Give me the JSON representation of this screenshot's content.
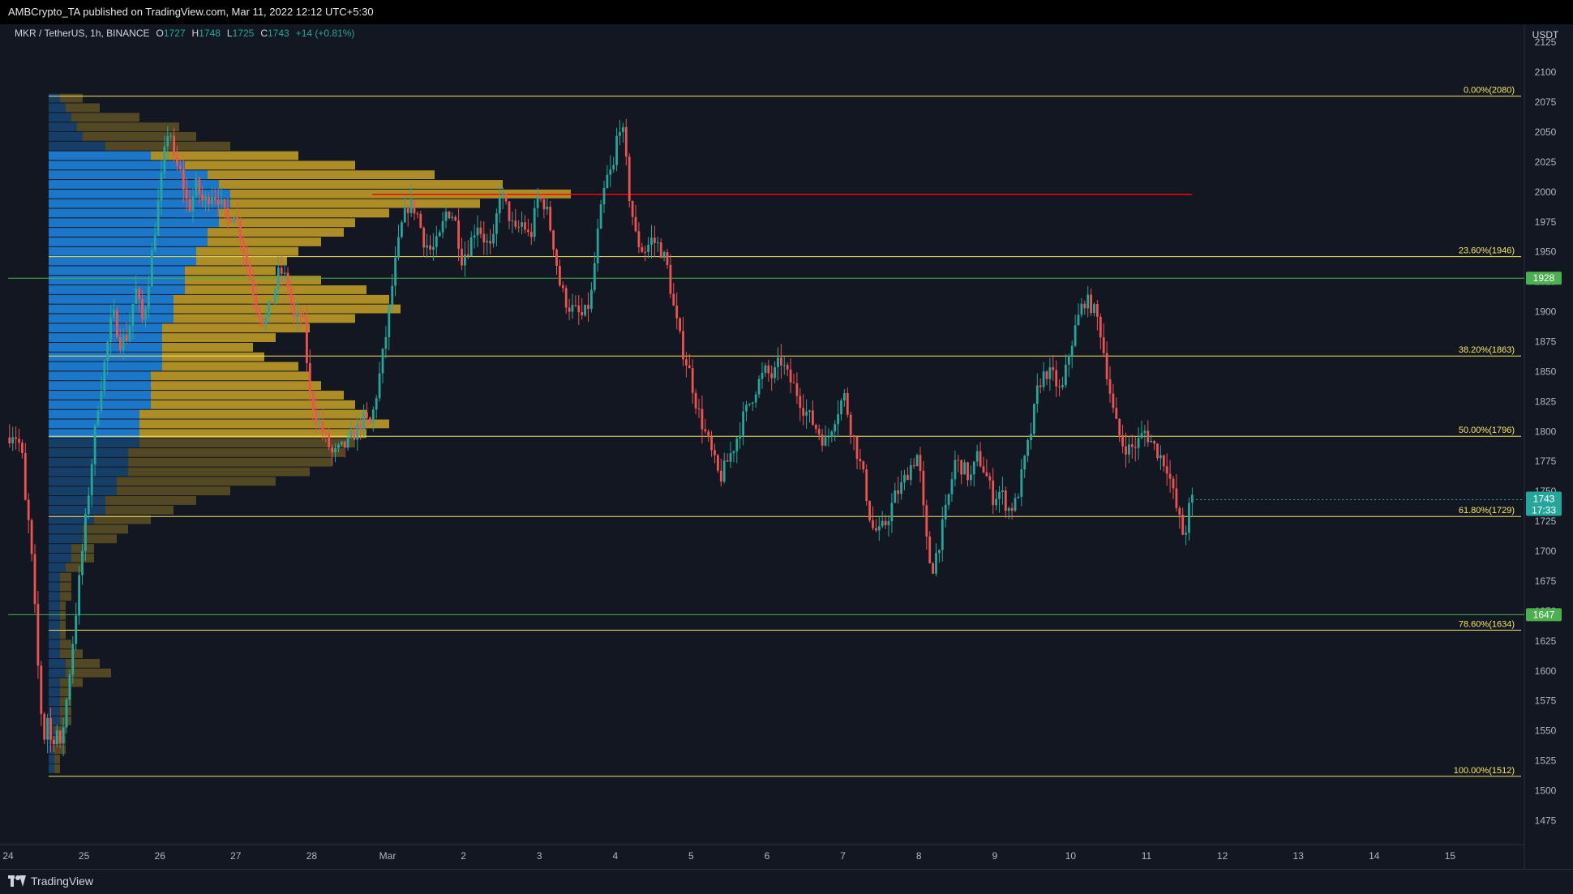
{
  "header": {
    "title": "AMBCrypto_TA published on TradingView.com, Mar 11, 2022 12:12 UTC+5:30"
  },
  "legend": {
    "symbol": "MKR / TetherUS, 1h, BINANCE",
    "o_label": "O",
    "o_value": "1727",
    "h_label": "H",
    "h_value": "1748",
    "l_label": "L",
    "l_value": "1725",
    "c_label": "C",
    "c_value": "1743",
    "change": "+14 (+0.81%)"
  },
  "footer": {
    "brand": "TradingView"
  },
  "chart_data": {
    "type": "candlestick",
    "title": "",
    "currency_label": "USDT",
    "y_range": [
      1455,
      2140
    ],
    "y_ticks": [
      1475,
      1500,
      1525,
      1550,
      1575,
      1600,
      1625,
      1650,
      1675,
      1700,
      1725,
      1750,
      1775,
      1800,
      1825,
      1850,
      1875,
      1900,
      1925,
      1950,
      1975,
      2000,
      2025,
      2050,
      2075,
      2100,
      2125
    ],
    "x_ticks": [
      {
        "label": "24",
        "day": 0
      },
      {
        "label": "25",
        "day": 1
      },
      {
        "label": "26",
        "day": 2
      },
      {
        "label": "27",
        "day": 3
      },
      {
        "label": "28",
        "day": 4
      },
      {
        "label": "Mar",
        "day": 5
      },
      {
        "label": "2",
        "day": 6
      },
      {
        "label": "3",
        "day": 7
      },
      {
        "label": "4",
        "day": 8
      },
      {
        "label": "5",
        "day": 9
      },
      {
        "label": "6",
        "day": 10
      },
      {
        "label": "7",
        "day": 11
      },
      {
        "label": "8",
        "day": 12
      },
      {
        "label": "9",
        "day": 13
      },
      {
        "label": "10",
        "day": 14
      },
      {
        "label": "11",
        "day": 15
      },
      {
        "label": "12",
        "day": 16
      },
      {
        "label": "13",
        "day": 17
      },
      {
        "label": "14",
        "day": 18
      },
      {
        "label": "15",
        "day": 19
      }
    ],
    "fib_levels": [
      {
        "label": "0.00%(2080)",
        "value": 2080
      },
      {
        "label": "23.60%(1946)",
        "value": 1946
      },
      {
        "label": "38.20%(1863)",
        "value": 1863
      },
      {
        "label": "50.00%(1796)",
        "value": 1796
      },
      {
        "label": "61.80%(1729)",
        "value": 1729
      },
      {
        "label": "78.60%(1634)",
        "value": 1634
      },
      {
        "label": "100.00%(1512)",
        "value": 1512
      }
    ],
    "horizontal_levels": [
      {
        "label": "1928",
        "value": 1928,
        "color": "#4caf50"
      },
      {
        "label": "1647",
        "value": 1647,
        "color": "#4caf50"
      }
    ],
    "red_line": {
      "value": 1998,
      "color": "#ff0000"
    },
    "last_price": {
      "label": "1743",
      "countdown": "17:33",
      "value": 1743
    },
    "colors": {
      "up": "#26a69a",
      "down": "#ef5350",
      "fib": "#f5e663",
      "vp_up": "#1e88e5",
      "vp_down": "#c9a227"
    },
    "close_path": [
      [
        0.0,
        1795
      ],
      [
        0.1,
        1800
      ],
      [
        0.2,
        1785
      ],
      [
        0.25,
        1740
      ],
      [
        0.3,
        1720
      ],
      [
        0.35,
        1680
      ],
      [
        0.4,
        1620
      ],
      [
        0.45,
        1570
      ],
      [
        0.5,
        1545
      ],
      [
        0.55,
        1565
      ],
      [
        0.6,
        1530
      ],
      [
        0.65,
        1560
      ],
      [
        0.7,
        1530
      ],
      [
        0.8,
        1580
      ],
      [
        0.9,
        1640
      ],
      [
        1.0,
        1700
      ],
      [
        1.1,
        1760
      ],
      [
        1.2,
        1820
      ],
      [
        1.3,
        1860
      ],
      [
        1.4,
        1900
      ],
      [
        1.5,
        1875
      ],
      [
        1.6,
        1880
      ],
      [
        1.7,
        1920
      ],
      [
        1.8,
        1890
      ],
      [
        1.9,
        1940
      ],
      [
        2.0,
        1990
      ],
      [
        2.1,
        2040
      ],
      [
        2.15,
        2060
      ],
      [
        2.2,
        2025
      ],
      [
        2.3,
        2015
      ],
      [
        2.4,
        1985
      ],
      [
        2.5,
        2005
      ],
      [
        2.6,
        1990
      ],
      [
        2.7,
        2000
      ],
      [
        2.8,
        1995
      ],
      [
        2.9,
        1975
      ],
      [
        3.0,
        1985
      ],
      [
        3.1,
        1960
      ],
      [
        3.2,
        1930
      ],
      [
        3.3,
        1905
      ],
      [
        3.4,
        1890
      ],
      [
        3.5,
        1910
      ],
      [
        3.6,
        1935
      ],
      [
        3.7,
        1925
      ],
      [
        3.8,
        1890
      ],
      [
        3.9,
        1900
      ],
      [
        4.0,
        1830
      ],
      [
        4.1,
        1810
      ],
      [
        4.2,
        1795
      ],
      [
        4.3,
        1780
      ],
      [
        4.4,
        1785
      ],
      [
        4.5,
        1790
      ],
      [
        4.6,
        1800
      ],
      [
        4.7,
        1810
      ],
      [
        4.8,
        1805
      ],
      [
        4.9,
        1840
      ],
      [
        5.0,
        1880
      ],
      [
        5.1,
        1930
      ],
      [
        5.2,
        1970
      ],
      [
        5.3,
        1990
      ],
      [
        5.4,
        1985
      ],
      [
        5.5,
        1960
      ],
      [
        5.6,
        1950
      ],
      [
        5.7,
        1960
      ],
      [
        5.8,
        1985
      ],
      [
        5.9,
        1980
      ],
      [
        6.0,
        1945
      ],
      [
        6.1,
        1955
      ],
      [
        6.2,
        1975
      ],
      [
        6.3,
        1960
      ],
      [
        6.4,
        1950
      ],
      [
        6.5,
        2000
      ],
      [
        6.6,
        1985
      ],
      [
        6.7,
        1965
      ],
      [
        6.8,
        1975
      ],
      [
        6.9,
        1960
      ],
      [
        7.0,
        1995
      ],
      [
        7.1,
        1990
      ],
      [
        7.2,
        1960
      ],
      [
        7.3,
        1920
      ],
      [
        7.4,
        1905
      ],
      [
        7.5,
        1900
      ],
      [
        7.6,
        1895
      ],
      [
        7.7,
        1910
      ],
      [
        7.8,
        1970
      ],
      [
        7.9,
        2010
      ],
      [
        8.0,
        2020
      ],
      [
        8.05,
        2050
      ],
      [
        8.1,
        2060
      ],
      [
        8.15,
        2035
      ],
      [
        8.2,
        2000
      ],
      [
        8.25,
        1980
      ],
      [
        8.3,
        1960
      ],
      [
        8.4,
        1950
      ],
      [
        8.5,
        1960
      ],
      [
        8.6,
        1955
      ],
      [
        8.7,
        1940
      ],
      [
        8.8,
        1900
      ],
      [
        8.9,
        1870
      ],
      [
        9.0,
        1850
      ],
      [
        9.1,
        1820
      ],
      [
        9.2,
        1800
      ],
      [
        9.3,
        1780
      ],
      [
        9.4,
        1760
      ],
      [
        9.5,
        1775
      ],
      [
        9.6,
        1790
      ],
      [
        9.7,
        1810
      ],
      [
        9.8,
        1825
      ],
      [
        9.9,
        1840
      ],
      [
        10.0,
        1850
      ],
      [
        10.1,
        1845
      ],
      [
        10.2,
        1860
      ],
      [
        10.3,
        1845
      ],
      [
        10.4,
        1835
      ],
      [
        10.5,
        1820
      ],
      [
        10.6,
        1810
      ],
      [
        10.7,
        1800
      ],
      [
        10.8,
        1790
      ],
      [
        10.9,
        1810
      ],
      [
        11.0,
        1825
      ],
      [
        11.05,
        1830
      ],
      [
        11.1,
        1810
      ],
      [
        11.2,
        1785
      ],
      [
        11.3,
        1760
      ],
      [
        11.4,
        1720
      ],
      [
        11.5,
        1715
      ],
      [
        11.6,
        1725
      ],
      [
        11.7,
        1745
      ],
      [
        11.8,
        1755
      ],
      [
        11.9,
        1770
      ],
      [
        12.0,
        1780
      ],
      [
        12.05,
        1760
      ],
      [
        12.1,
        1720
      ],
      [
        12.15,
        1695
      ],
      [
        12.2,
        1685
      ],
      [
        12.3,
        1710
      ],
      [
        12.4,
        1740
      ],
      [
        12.5,
        1775
      ],
      [
        12.6,
        1770
      ],
      [
        12.7,
        1760
      ],
      [
        12.8,
        1780
      ],
      [
        12.9,
        1765
      ],
      [
        13.0,
        1745
      ],
      [
        13.1,
        1750
      ],
      [
        13.2,
        1735
      ],
      [
        13.3,
        1740
      ],
      [
        13.4,
        1770
      ],
      [
        13.5,
        1800
      ],
      [
        13.6,
        1840
      ],
      [
        13.7,
        1850
      ],
      [
        13.8,
        1845
      ],
      [
        13.9,
        1830
      ],
      [
        14.0,
        1865
      ],
      [
        14.1,
        1890
      ],
      [
        14.2,
        1910
      ],
      [
        14.3,
        1905
      ],
      [
        14.4,
        1890
      ],
      [
        14.5,
        1850
      ],
      [
        14.6,
        1810
      ],
      [
        14.7,
        1790
      ],
      [
        14.8,
        1785
      ],
      [
        14.9,
        1790
      ],
      [
        15.0,
        1800
      ],
      [
        15.1,
        1790
      ],
      [
        15.2,
        1780
      ],
      [
        15.3,
        1770
      ],
      [
        15.4,
        1740
      ],
      [
        15.5,
        1715
      ],
      [
        15.55,
        1720
      ],
      [
        15.6,
        1743
      ]
    ],
    "volume_profile": [
      {
        "price": 2078,
        "up": 0.01,
        "down": 0.02
      },
      {
        "price": 2070,
        "up": 0.015,
        "down": 0.03
      },
      {
        "price": 2062,
        "up": 0.02,
        "down": 0.06
      },
      {
        "price": 2054,
        "up": 0.025,
        "down": 0.09
      },
      {
        "price": 2046,
        "up": 0.03,
        "down": 0.1
      },
      {
        "price": 2038,
        "up": 0.05,
        "down": 0.11
      },
      {
        "price": 2030,
        "up": 0.09,
        "down": 0.13
      },
      {
        "price": 2022,
        "up": 0.12,
        "down": 0.15
      },
      {
        "price": 2014,
        "up": 0.14,
        "down": 0.2
      },
      {
        "price": 2006,
        "up": 0.15,
        "down": 0.25
      },
      {
        "price": 1998,
        "up": 0.16,
        "down": 0.3
      },
      {
        "price": 1990,
        "up": 0.16,
        "down": 0.22
      },
      {
        "price": 1982,
        "up": 0.15,
        "down": 0.15
      },
      {
        "price": 1974,
        "up": 0.15,
        "down": 0.12
      },
      {
        "price": 1966,
        "up": 0.14,
        "down": 0.12
      },
      {
        "price": 1958,
        "up": 0.14,
        "down": 0.1
      },
      {
        "price": 1950,
        "up": 0.13,
        "down": 0.09
      },
      {
        "price": 1942,
        "up": 0.13,
        "down": 0.08
      },
      {
        "price": 1934,
        "up": 0.12,
        "down": 0.08
      },
      {
        "price": 1926,
        "up": 0.12,
        "down": 0.12
      },
      {
        "price": 1918,
        "up": 0.12,
        "down": 0.16
      },
      {
        "price": 1910,
        "up": 0.11,
        "down": 0.19
      },
      {
        "price": 1902,
        "up": 0.11,
        "down": 0.2
      },
      {
        "price": 1894,
        "up": 0.11,
        "down": 0.16
      },
      {
        "price": 1886,
        "up": 0.1,
        "down": 0.13
      },
      {
        "price": 1878,
        "up": 0.1,
        "down": 0.1
      },
      {
        "price": 1870,
        "up": 0.1,
        "down": 0.08
      },
      {
        "price": 1862,
        "up": 0.1,
        "down": 0.09
      },
      {
        "price": 1854,
        "up": 0.1,
        "down": 0.12
      },
      {
        "price": 1846,
        "up": 0.09,
        "down": 0.14
      },
      {
        "price": 1838,
        "up": 0.09,
        "down": 0.15
      },
      {
        "price": 1830,
        "up": 0.09,
        "down": 0.17
      },
      {
        "price": 1822,
        "up": 0.09,
        "down": 0.18
      },
      {
        "price": 1814,
        "up": 0.08,
        "down": 0.2
      },
      {
        "price": 1806,
        "up": 0.08,
        "down": 0.22
      },
      {
        "price": 1798,
        "up": 0.08,
        "down": 0.2
      },
      {
        "price": 1790,
        "up": 0.08,
        "down": 0.19
      },
      {
        "price": 1782,
        "up": 0.07,
        "down": 0.19
      },
      {
        "price": 1774,
        "up": 0.07,
        "down": 0.18
      },
      {
        "price": 1766,
        "up": 0.07,
        "down": 0.16
      },
      {
        "price": 1758,
        "up": 0.06,
        "down": 0.14
      },
      {
        "price": 1750,
        "up": 0.06,
        "down": 0.1
      },
      {
        "price": 1742,
        "up": 0.05,
        "down": 0.08
      },
      {
        "price": 1734,
        "up": 0.05,
        "down": 0.06
      },
      {
        "price": 1726,
        "up": 0.04,
        "down": 0.05
      },
      {
        "price": 1718,
        "up": 0.03,
        "down": 0.04
      },
      {
        "price": 1710,
        "up": 0.03,
        "down": 0.03
      },
      {
        "price": 1702,
        "up": 0.02,
        "down": 0.02
      },
      {
        "price": 1694,
        "up": 0.02,
        "down": 0.02
      },
      {
        "price": 1686,
        "up": 0.015,
        "down": 0.015
      },
      {
        "price": 1678,
        "up": 0.01,
        "down": 0.01
      },
      {
        "price": 1670,
        "up": 0.01,
        "down": 0.01
      },
      {
        "price": 1662,
        "up": 0.01,
        "down": 0.01
      },
      {
        "price": 1654,
        "up": 0.01,
        "down": 0.005
      },
      {
        "price": 1646,
        "up": 0.01,
        "down": 0.005
      },
      {
        "price": 1638,
        "up": 0.01,
        "down": 0.005
      },
      {
        "price": 1630,
        "up": 0.01,
        "down": 0.005
      },
      {
        "price": 1622,
        "up": 0.01,
        "down": 0.01
      },
      {
        "price": 1614,
        "up": 0.01,
        "down": 0.02
      },
      {
        "price": 1606,
        "up": 0.015,
        "down": 0.03
      },
      {
        "price": 1598,
        "up": 0.015,
        "down": 0.04
      },
      {
        "price": 1590,
        "up": 0.01,
        "down": 0.02
      },
      {
        "price": 1582,
        "up": 0.01,
        "down": 0.01
      },
      {
        "price": 1574,
        "up": 0.01,
        "down": 0.01
      },
      {
        "price": 1566,
        "up": 0.01,
        "down": 0.01
      },
      {
        "price": 1558,
        "up": 0.01,
        "down": 0.01
      },
      {
        "price": 1550,
        "up": 0.005,
        "down": 0.01
      },
      {
        "price": 1542,
        "up": 0.005,
        "down": 0.01
      },
      {
        "price": 1534,
        "up": 0.005,
        "down": 0.01
      },
      {
        "price": 1526,
        "up": 0.005,
        "down": 0.005
      },
      {
        "price": 1518,
        "up": 0.005,
        "down": 0.005
      }
    ]
  }
}
